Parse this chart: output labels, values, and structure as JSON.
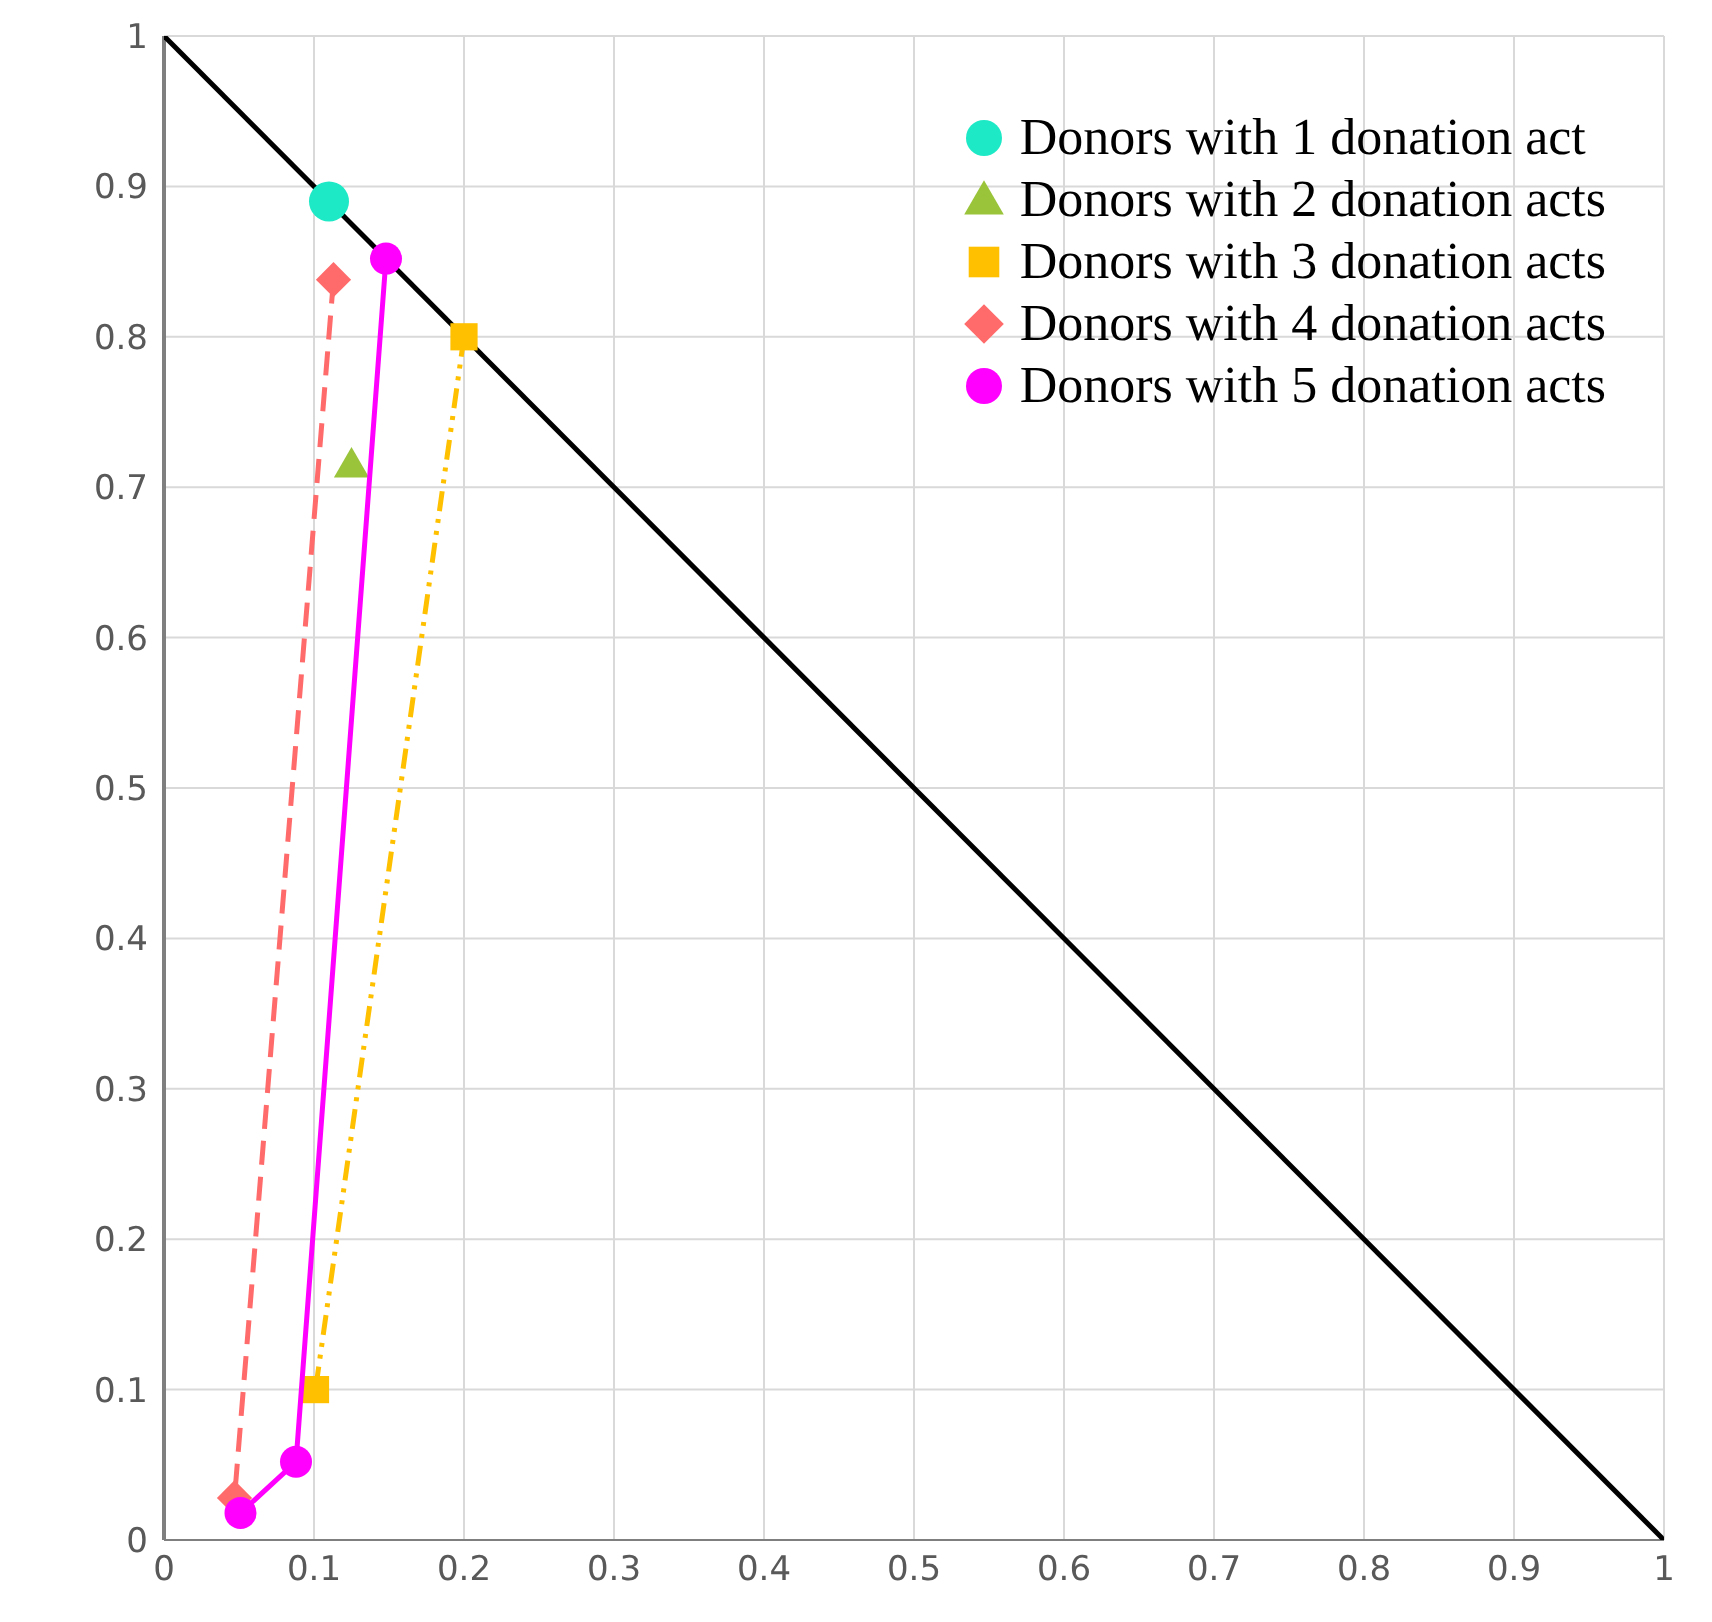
{
  "chart_data": {
    "type": "scatter",
    "xlim": [
      0,
      1
    ],
    "ylim": [
      0,
      1
    ],
    "xticks": [
      0,
      0.1,
      0.2,
      0.3,
      0.4,
      0.5,
      0.6,
      0.7,
      0.8,
      0.9,
      1
    ],
    "yticks": [
      0,
      0.1,
      0.2,
      0.3,
      0.4,
      0.5,
      0.6,
      0.7,
      0.8,
      0.9,
      1
    ],
    "grid": true,
    "legend": "top right",
    "series": [
      {
        "type": "line",
        "color": "#000000",
        "x": [
          0,
          1
        ],
        "values": [
          1,
          0
        ],
        "marker": "none",
        "line_style": "solid"
      },
      {
        "name": "Donors with 1 donation act",
        "color": "#1de9c6",
        "x": [
          0.11
        ],
        "values": [
          0.89
        ],
        "marker": "circle"
      },
      {
        "name": "Donors with 2 donation acts",
        "color": "#9ac43a",
        "x": [
          0.125
        ],
        "values": [
          0.715
        ],
        "marker": "triangle"
      },
      {
        "name": "Donors with 3 donation acts",
        "type": "line",
        "color": "#ffc000",
        "x": [
          0.2,
          0.101
        ],
        "values": [
          0.8,
          0.1
        ],
        "marker": "square",
        "line_style": "dotted"
      },
      {
        "name": "Donors with 4 donation acts",
        "type": "line",
        "color": "#ff6b6b",
        "x": [
          0.113,
          0.047
        ],
        "values": [
          0.838,
          0.028
        ],
        "marker": "diamond",
        "line_style": "dashed"
      },
      {
        "name": "Donors with 5 donation acts",
        "type": "line",
        "color": "#ff00ff",
        "x": [
          0.148,
          0.088,
          0.051
        ],
        "values": [
          0.852,
          0.052,
          0.018
        ],
        "marker": "circle",
        "line_style": "solid"
      }
    ]
  }
}
